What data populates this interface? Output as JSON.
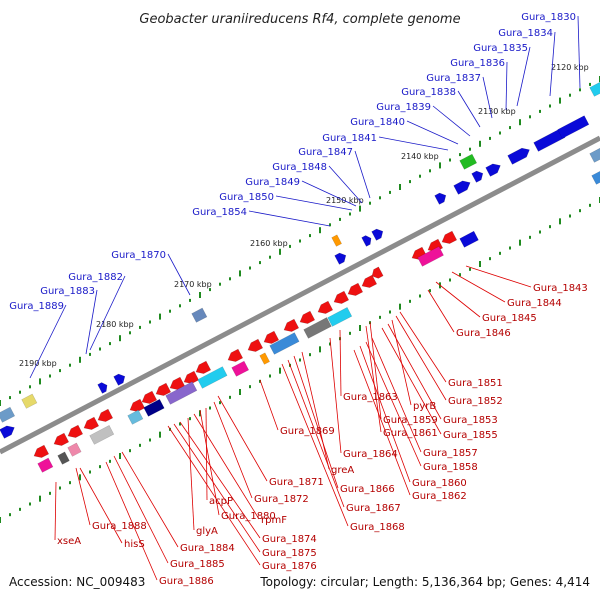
{
  "title": "Geobacter uraniireducens Rf4, complete genome",
  "accession": "Accession: NC_009483",
  "summary": "Topology: circular; Length: 5,136,364 bp; Genes: 4,414",
  "scale_ticks": [
    "2120 kbp",
    "2130 kbp",
    "2140 kbp",
    "2150 kbp",
    "2160 kbp",
    "2170 kbp",
    "2180 kbp",
    "2190 kbp"
  ],
  "top_labels": [
    "Gura_1830",
    "Gura_1834",
    "Gura_1835",
    "Gura_1836",
    "Gura_1837",
    "Gura_1838",
    "Gura_1839",
    "Gura_1840",
    "Gura_1841",
    "Gura_1847",
    "Gura_1848",
    "Gura_1849",
    "Gura_1850",
    "Gura_1854",
    "Gura_1870",
    "Gura_1882",
    "Gura_1883",
    "Gura_1889"
  ],
  "bottom_labels": [
    "Gura_1843",
    "Gura_1844",
    "Gura_1845",
    "Gura_1846",
    "Gura_1851",
    "Gura_1852",
    "pyrB",
    "Gura_1853",
    "Gura_1859",
    "Gura_1855",
    "Gura_1861",
    "Gura_1863",
    "Gura_1857",
    "Gura_1858",
    "Gura_1864",
    "Gura_1860",
    "Gura_1862",
    "greA",
    "Gura_1869",
    "Gura_1866",
    "Gura_1867",
    "Gura_1868",
    "Gura_1871",
    "Gura_1872",
    "acpP",
    "Gura_1880",
    "rpmF",
    "glyA",
    "Gura_1874",
    "Gura_1875",
    "Gura_1876",
    "Gura_1888",
    "xseA",
    "hisS",
    "Gura_1884",
    "Gura_1885",
    "Gura_1886"
  ],
  "colors": {
    "forward_cds": "#0a0ad8",
    "reverse_cds": "#ee1111",
    "backbone": "#8c8c8c",
    "tick": "#1f8a1f"
  }
}
